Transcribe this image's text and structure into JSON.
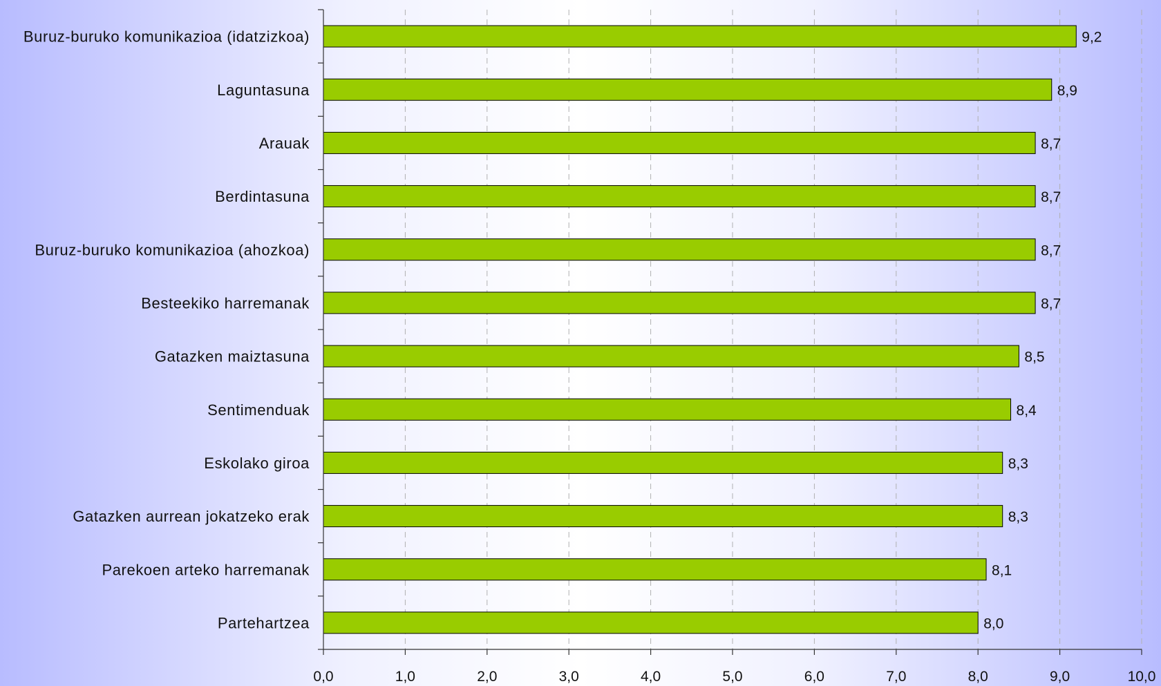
{
  "chart_data": {
    "type": "bar",
    "orientation": "horizontal",
    "categories": [
      "Buruz-buruko komunikazioa (idatzizkoa)",
      "Laguntasuna",
      "Arauak",
      "Berdintasuna",
      "Buruz-buruko komunikazioa (ahozkoa)",
      "Besteekiko harremanak",
      "Gatazken maiztasuna",
      "Sentimenduak",
      "Eskolako giroa",
      "Gatazken aurrean jokatzeko erak",
      "Parekoen arteko harremanak",
      "Partehartzea"
    ],
    "values": [
      9.2,
      8.9,
      8.7,
      8.7,
      8.7,
      8.7,
      8.5,
      8.4,
      8.3,
      8.3,
      8.1,
      8.0
    ],
    "value_labels": [
      "9,2",
      "8,9",
      "8,7",
      "8,7",
      "8,7",
      "8,7",
      "8,5",
      "8,4",
      "8,3",
      "8,3",
      "8,1",
      "8,0"
    ],
    "xlim": [
      0,
      10
    ],
    "xticks": [
      0,
      1,
      2,
      3,
      4,
      5,
      6,
      7,
      8,
      9,
      10
    ],
    "xtick_labels": [
      "0,0",
      "1,0",
      "2,0",
      "3,0",
      "4,0",
      "5,0",
      "6,0",
      "7,0",
      "8,0",
      "9,0",
      "10,0"
    ],
    "title": "",
    "xlabel": "",
    "ylabel": "",
    "grid": "vertical dashed",
    "legend": "none",
    "colors": {
      "bar_fill": "#99cc00",
      "bar_stroke": "#000000",
      "axis": "#333333",
      "gridline": "#b0b0b0",
      "background_edge": "#b8bcff",
      "background_center": "#ffffff"
    }
  }
}
